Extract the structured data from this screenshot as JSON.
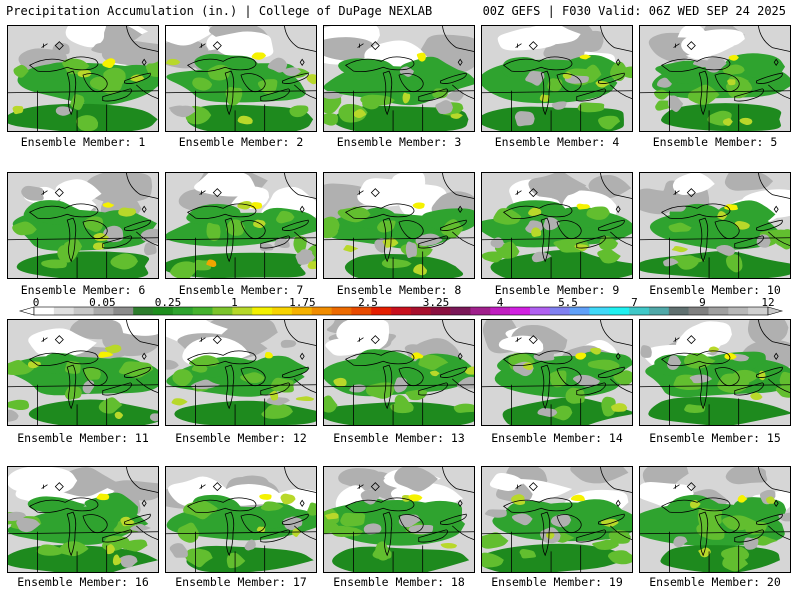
{
  "header": {
    "left_title": "Precipitation Accumulation (in.) | College of DuPage NEXLAB",
    "right_title": "00Z GEFS | F030 Valid: 06Z WED SEP 24 2025"
  },
  "colors": {
    "white": "#ffffff",
    "light_gray": "#d6d6d6",
    "mid_gray": "#b0b0b0",
    "dark_gray": "#8c8c8c",
    "green_dark": "#1e8a1e",
    "green": "#2fa32f",
    "green_light": "#62be2f",
    "yellow_green": "#b8d82a",
    "yellow": "#f5f200",
    "orange": "#f0a500",
    "coastline": "#000000"
  },
  "colorbar": {
    "ticks": [
      "0",
      "0.05",
      "0.25",
      "1",
      "1.75",
      "2.5",
      "3.25",
      "4",
      "5.5",
      "7",
      "9",
      "12"
    ],
    "tick_x_fraction": [
      0.045,
      0.128,
      0.21,
      0.293,
      0.378,
      0.46,
      0.545,
      0.625,
      0.71,
      0.793,
      0.878,
      0.96
    ],
    "segments": [
      "#ffffff",
      "#e0e0e0",
      "#c8c8c8",
      "#aaaaaa",
      "#8c8c8c",
      "#2d7d2d",
      "#1f8f1f",
      "#2ea32e",
      "#45b22e",
      "#7cc42c",
      "#b6d82a",
      "#f3f000",
      "#f7d300",
      "#f5b100",
      "#f08c00",
      "#ec6a00",
      "#e84a00",
      "#e41e00",
      "#c8101e",
      "#a8102e",
      "#8a1040",
      "#7a1858",
      "#a0208c",
      "#c01ec0",
      "#d020e0",
      "#b060f0",
      "#8080f0",
      "#60a0f8",
      "#40d8f8",
      "#20f0f0",
      "#40c8c8",
      "#50a8a8",
      "#607070",
      "#808080",
      "#a0a0a0",
      "#b8b8b8",
      "#d0d0d0"
    ]
  },
  "members": [
    {
      "label": "Ensemble Member: 1"
    },
    {
      "label": "Ensemble Member: 2"
    },
    {
      "label": "Ensemble Member: 3"
    },
    {
      "label": "Ensemble Member: 4"
    },
    {
      "label": "Ensemble Member: 5"
    },
    {
      "label": "Ensemble Member: 6"
    },
    {
      "label": "Ensemble Member: 7"
    },
    {
      "label": "Ensemble Member: 8"
    },
    {
      "label": "Ensemble Member: 9"
    },
    {
      "label": "Ensemble Member: 10"
    },
    {
      "label": "Ensemble Member: 11"
    },
    {
      "label": "Ensemble Member: 12"
    },
    {
      "label": "Ensemble Member: 13"
    },
    {
      "label": "Ensemble Member: 14"
    },
    {
      "label": "Ensemble Member: 15"
    },
    {
      "label": "Ensemble Member: 16"
    },
    {
      "label": "Ensemble Member: 17"
    },
    {
      "label": "Ensemble Member: 18"
    },
    {
      "label": "Ensemble Member: 19"
    },
    {
      "label": "Ensemble Member: 20"
    }
  ]
}
